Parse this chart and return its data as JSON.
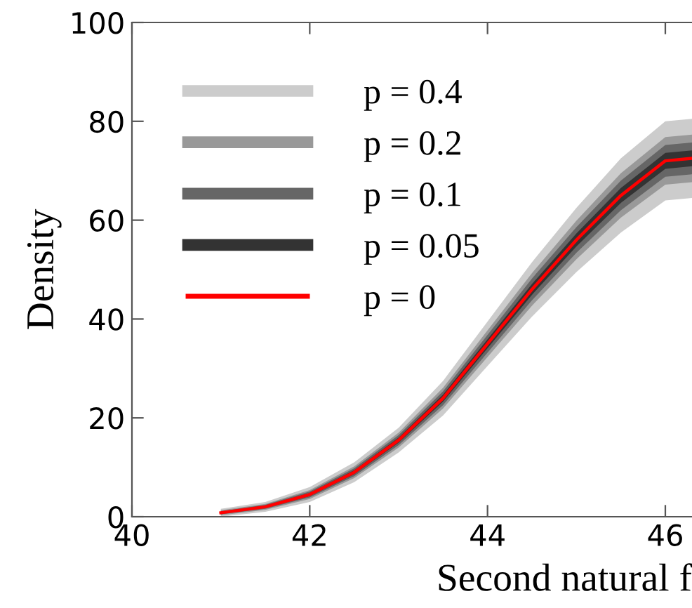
{
  "chart_data": {
    "type": "line",
    "xlabel": "Second natural f",
    "ylabel": "Density",
    "xlim": [
      40,
      46.3
    ],
    "ylim": [
      0,
      100
    ],
    "xticks": [
      40,
      42,
      44,
      46
    ],
    "yticks": [
      0,
      20,
      40,
      60,
      80,
      100
    ],
    "grid": false,
    "legend": "top left",
    "marker": "none",
    "line_style": "solid",
    "x": [
      41,
      41.5,
      42,
      42.5,
      43,
      43.5,
      44,
      44.5,
      45,
      45.5,
      46,
      46.3
    ],
    "series": [
      {
        "name": "p = 0.4",
        "color": "#cccccc",
        "values": [
          null,
          null,
          null,
          null,
          null,
          null,
          null,
          null,
          null,
          null,
          null,
          null
        ],
        "lower": [
          0,
          1,
          3,
          7,
          13,
          20.5,
          30.5,
          40.5,
          49.5,
          57.5,
          64,
          64.5
        ],
        "upper": [
          1.6,
          3,
          6,
          11,
          18,
          27.5,
          39.5,
          51.5,
          62.5,
          72.5,
          80,
          80.5
        ]
      },
      {
        "name": "p = 0.2",
        "color": "#999999",
        "values": [
          null,
          null,
          null,
          null,
          null,
          null,
          null,
          null,
          null,
          null,
          null,
          null
        ],
        "lower": [
          0.3,
          1.4,
          3.6,
          7.8,
          14,
          21.9,
          32.3,
          42.7,
          52.1,
          60.5,
          67.2,
          67.7
        ],
        "upper": [
          1.3,
          2.6,
          5.4,
          10.2,
          17,
          26.1,
          37.7,
          49.3,
          59.9,
          69.5,
          76.8,
          77.3
        ]
      },
      {
        "name": "p = 0.1",
        "color": "#666666",
        "values": [
          null,
          null,
          null,
          null,
          null,
          null,
          null,
          null,
          null,
          null,
          null,
          null
        ],
        "lower": [
          0.5,
          1.6,
          3.9,
          8.2,
          14.5,
          22.6,
          33.2,
          43.8,
          53.4,
          62,
          68.8,
          69.3
        ],
        "upper": [
          1.1,
          2.4,
          5.1,
          9.8,
          16.5,
          25.4,
          36.8,
          48.2,
          58.6,
          68,
          75.2,
          75.7
        ]
      },
      {
        "name": "p = 0.05",
        "color": "#333333",
        "values": [
          null,
          null,
          null,
          null,
          null,
          null,
          null,
          null,
          null,
          null,
          null,
          null
        ],
        "lower": [
          0.6,
          1.8,
          4.2,
          8.6,
          15,
          23.3,
          34.1,
          44.9,
          54.7,
          63.5,
          70.4,
          70.9
        ],
        "upper": [
          1,
          2.2,
          4.8,
          9.4,
          16,
          24.7,
          35.9,
          47.1,
          57.3,
          66.5,
          73.6,
          74.1
        ]
      },
      {
        "name": "p = 0",
        "color": "#ff0000",
        "values": [
          0.8,
          2,
          4.5,
          9,
          15.5,
          24,
          35,
          46,
          56,
          65,
          72,
          72.5
        ]
      }
    ]
  }
}
